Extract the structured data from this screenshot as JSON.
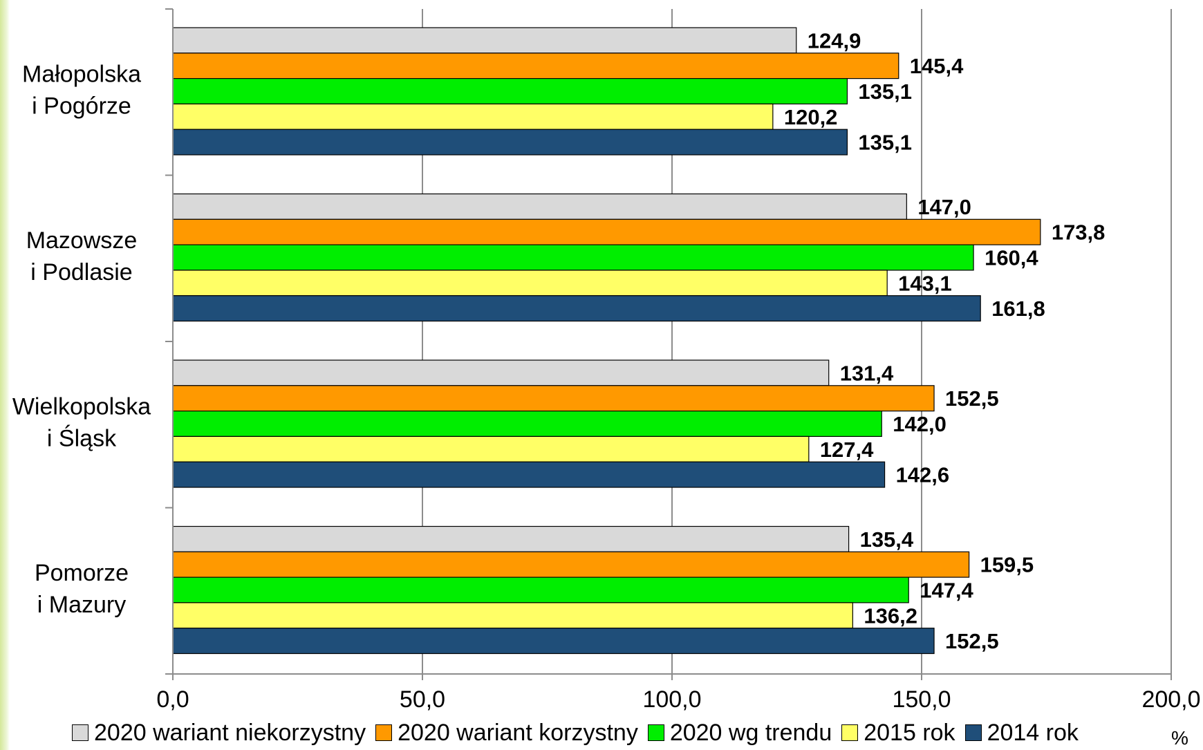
{
  "chart_data": {
    "type": "bar",
    "orientation": "horizontal",
    "categories": [
      "Małopolska\ni Pogórze",
      "Mazowsze\ni Podlasie",
      "Wielkopolska\ni Śląsk",
      "Pomorze\ni Mazury"
    ],
    "series": [
      {
        "name": "2020 wariant niekorzystny",
        "color": "#d9d9d9",
        "values": [
          124.9,
          147.0,
          131.4,
          135.4
        ],
        "labels": [
          "124,9",
          "147,0",
          "131,4",
          "135,4"
        ]
      },
      {
        "name": "2020 wariant korzystny",
        "color": "#ff9900",
        "values": [
          145.4,
          173.8,
          152.5,
          159.5
        ],
        "labels": [
          "145,4",
          "173,8",
          "152,5",
          "159,5"
        ]
      },
      {
        "name": "2020 wg trendu",
        "color": "#00ee00",
        "values": [
          135.1,
          160.4,
          142.0,
          147.4
        ],
        "labels": [
          "135,1",
          "160,4",
          "142,0",
          "147,4"
        ]
      },
      {
        "name": "2015 rok",
        "color": "#ffff66",
        "values": [
          120.2,
          143.1,
          127.4,
          136.2
        ],
        "labels": [
          "120,2",
          "143,1",
          "127,4",
          "136,2"
        ]
      },
      {
        "name": "2014 rok",
        "color": "#1f4e79",
        "values": [
          135.1,
          161.8,
          142.6,
          152.5
        ],
        "labels": [
          "135,1",
          "161,8",
          "142,6",
          "152,5"
        ]
      }
    ],
    "xlim": [
      0,
      200
    ],
    "xticks": [
      0,
      50,
      100,
      150,
      200
    ],
    "xtick_labels": [
      "0,0",
      "50,0",
      "100,0",
      "150,0",
      "200,0"
    ],
    "unit_label": "%",
    "grid": true,
    "legend_position": "bottom"
  }
}
